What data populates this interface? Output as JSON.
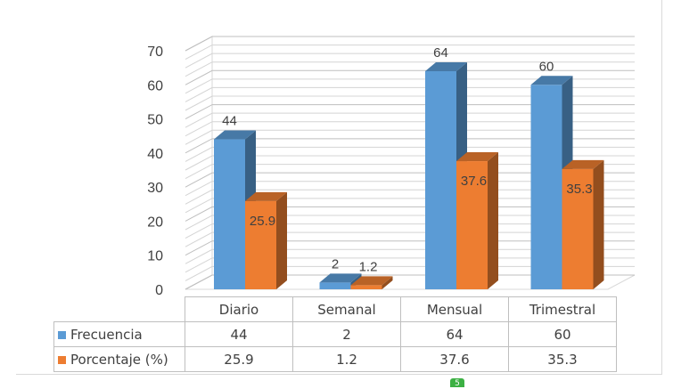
{
  "chart_data": {
    "type": "bar",
    "title": "",
    "categories": [
      "Diario",
      "Semanal",
      "Mensual",
      "Trimestral"
    ],
    "series": [
      {
        "name": "Frecuencia",
        "values": [
          44,
          2,
          64,
          60
        ],
        "color": "#5b9bd5"
      },
      {
        "name": "Porcentaje (%)",
        "values": [
          25.9,
          1.2,
          37.6,
          35.3
        ],
        "color": "#ed7d31"
      }
    ],
    "y_ticks": [
      "0",
      "10",
      "20",
      "30",
      "40",
      "50",
      "60",
      "70"
    ],
    "ylim": [
      0,
      70
    ],
    "grid": true,
    "three_d": true,
    "legend": "data-table",
    "data_labels": {
      "Frecuencia": [
        "44",
        "2",
        "64",
        "60"
      ],
      "Porcentaje (%)": [
        "25.9",
        "1.2",
        "37.6",
        "35.3"
      ]
    }
  },
  "table": {
    "rows": [
      {
        "label": "Frecuencia",
        "values": [
          "44",
          "2",
          "64",
          "60"
        ]
      },
      {
        "label": "Porcentaje (%)",
        "values": [
          "25.9",
          "1.2",
          "37.6",
          "35.3"
        ]
      }
    ]
  },
  "footer_marker": "5"
}
